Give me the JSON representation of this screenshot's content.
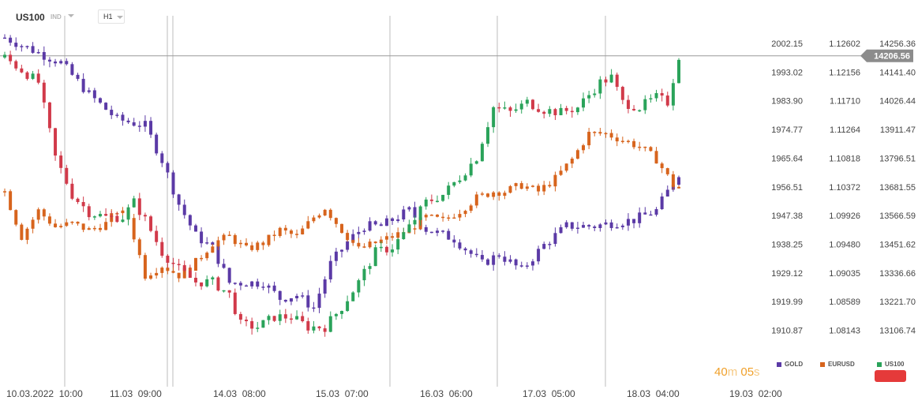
{
  "header": {
    "symbol": "US100",
    "market_tag": "IND",
    "timeframe": "H1"
  },
  "timer": {
    "minutes": "40",
    "m_unit": "m",
    "seconds": "05",
    "s_unit": "s"
  },
  "colors": {
    "gold": "#5b3aa6",
    "eurusd": "#d7641d",
    "us100_up": "#2aa35a",
    "us100_down": "#d13a4a",
    "grid": "#e4e4e4",
    "price_tag": "#8c8c8c",
    "timer": "#f0a02a"
  },
  "chart_data": {
    "type": "candlestick",
    "x_ticks": [
      "10.03.2022  10:00",
      "11.03  09:00",
      "14.03  08:00",
      "15.03  07:00",
      "16.03  06:00",
      "17.03  05:00",
      "18.03  04:00",
      "19.03  02:00"
    ],
    "gold_axis": [
      "2002.15",
      "1993.02",
      "1983.90",
      "1974.77",
      "1965.64",
      "1956.51",
      "1947.38",
      "1938.25",
      "1929.12",
      "1919.99",
      "1910.87"
    ],
    "eurusd_axis": [
      "1.12602",
      "1.12156",
      "1.11710",
      "1.11264",
      "1.10818",
      "1.10372",
      "1.09926",
      "1.09480",
      "1.09035",
      "1.08589",
      "1.08143"
    ],
    "us100_axis": [
      "14256.36",
      "14141.40",
      "14026.44",
      "13911.47",
      "13796.51",
      "13681.55",
      "13566.59",
      "13451.62",
      "13336.66",
      "13221.70",
      "13106.74"
    ],
    "current_price": "14206.56",
    "legend": [
      {
        "name": "GOLD",
        "color": "#5b3aa6"
      },
      {
        "name": "EURUSD",
        "color": "#d7641d"
      },
      {
        "name": "US100",
        "color": "#2aa35a"
      }
    ],
    "gold_close_path": [
      [
        0,
        2004
      ],
      [
        5,
        2000
      ],
      [
        10,
        1996
      ],
      [
        15,
        1986
      ],
      [
        20,
        1978
      ],
      [
        25,
        1976
      ],
      [
        28,
        1965
      ],
      [
        31,
        1951
      ],
      [
        34,
        1941
      ],
      [
        37,
        1937
      ],
      [
        40,
        1926
      ],
      [
        43,
        1926
      ],
      [
        46,
        1926
      ],
      [
        49,
        1921
      ],
      [
        52,
        1922
      ],
      [
        55,
        1918
      ],
      [
        58,
        1932
      ],
      [
        61,
        1939
      ],
      [
        64,
        1944
      ],
      [
        67,
        1944
      ],
      [
        72,
        1949
      ],
      [
        75,
        1943
      ],
      [
        80,
        1940
      ],
      [
        85,
        1932
      ],
      [
        88,
        1935
      ],
      [
        92,
        1930
      ],
      [
        96,
        1938
      ],
      [
        100,
        1944
      ],
      [
        105,
        1944
      ],
      [
        108,
        1945
      ],
      [
        112,
        1946
      ],
      [
        116,
        1949
      ],
      [
        120,
        1961
      ]
    ],
    "eurusd_close_path": [
      [
        0,
        1.103
      ],
      [
        3,
        1.096
      ],
      [
        6,
        1.1
      ],
      [
        9,
        1.0975
      ],
      [
        12,
        1.098
      ],
      [
        15,
        1.097
      ],
      [
        18,
        1.098
      ],
      [
        20,
        1.1
      ],
      [
        22,
        1.099
      ],
      [
        25,
        1.09
      ],
      [
        28,
        1.0915
      ],
      [
        31,
        1.09
      ],
      [
        34,
        1.092
      ],
      [
        37,
        1.095
      ],
      [
        40,
        1.096
      ],
      [
        43,
        1.094
      ],
      [
        46,
        1.095
      ],
      [
        49,
        1.097
      ],
      [
        52,
        1.096
      ],
      [
        55,
        1.099
      ],
      [
        57,
        1.1005
      ],
      [
        60,
        1.097
      ],
      [
        63,
        1.094
      ],
      [
        66,
        1.095
      ],
      [
        69,
        1.096
      ],
      [
        72,
        1.097
      ],
      [
        75,
        1.099
      ],
      [
        78,
        1.0985
      ],
      [
        81,
        1.1
      ],
      [
        84,
        1.102
      ],
      [
        87,
        1.103
      ],
      [
        89,
        1.103
      ],
      [
        92,
        1.104
      ],
      [
        95,
        1.103
      ],
      [
        98,
        1.105
      ],
      [
        101,
        1.108
      ],
      [
        104,
        1.112
      ],
      [
        107,
        1.112
      ],
      [
        110,
        1.111
      ],
      [
        113,
        1.11
      ],
      [
        116,
        1.108
      ],
      [
        119,
        1.104
      ],
      [
        120,
        1.1035
      ]
    ],
    "us100_close_path": [
      [
        0,
        14200
      ],
      [
        3,
        14150
      ],
      [
        6,
        14100
      ],
      [
        9,
        13800
      ],
      [
        12,
        13650
      ],
      [
        15,
        13580
      ],
      [
        18,
        13560
      ],
      [
        21,
        13560
      ],
      [
        23,
        13620
      ],
      [
        25,
        13550
      ],
      [
        28,
        13420
      ],
      [
        31,
        13350
      ],
      [
        34,
        13300
      ],
      [
        37,
        13300
      ],
      [
        40,
        13250
      ],
      [
        42,
        13130
      ],
      [
        45,
        13120
      ],
      [
        48,
        13160
      ],
      [
        51,
        13160
      ],
      [
        54,
        13120
      ],
      [
        57,
        13120
      ],
      [
        60,
        13200
      ],
      [
        63,
        13300
      ],
      [
        66,
        13420
      ],
      [
        69,
        13440
      ],
      [
        72,
        13520
      ],
      [
        75,
        13620
      ],
      [
        78,
        13650
      ],
      [
        81,
        13720
      ],
      [
        84,
        13800
      ],
      [
        87,
        14000
      ],
      [
        90,
        13980
      ],
      [
        93,
        14020
      ],
      [
        96,
        13990
      ],
      [
        99,
        13980
      ],
      [
        102,
        14000
      ],
      [
        104,
        14050
      ],
      [
        106,
        14100
      ],
      [
        108,
        14120
      ],
      [
        110,
        14020
      ],
      [
        113,
        14000
      ],
      [
        116,
        14040
      ],
      [
        118,
        14020
      ],
      [
        120,
        14206
      ]
    ]
  }
}
